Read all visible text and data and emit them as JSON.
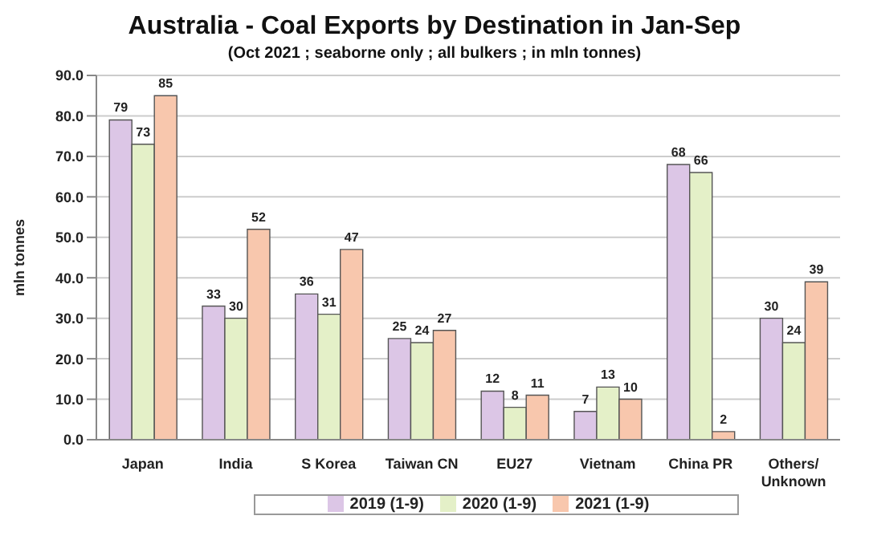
{
  "chart_data": {
    "type": "bar",
    "title": "Australia - Coal Exports by Destination in Jan-Sep",
    "subtitle": "(Oct 2021 ; seaborne only ; all bulkers ; in mln tonnes)",
    "ylabel": "mln tonnes",
    "categories": [
      "Japan",
      "India",
      "S Korea",
      "Taiwan CN",
      "EU27",
      "Vietnam",
      "China PR",
      "Others/Unknown"
    ],
    "series": [
      {
        "name": "2019 (1-9)",
        "color": "#dcc6e6",
        "values": [
          79,
          33,
          36,
          25,
          12,
          7,
          68,
          30
        ]
      },
      {
        "name": "2020 (1-9)",
        "color": "#e4f0c8",
        "values": [
          73,
          30,
          31,
          24,
          8,
          13,
          66,
          24
        ]
      },
      {
        "name": "2021 (1-9)",
        "color": "#f8c7ad",
        "values": [
          85,
          52,
          47,
          27,
          11,
          10,
          2,
          39
        ]
      }
    ],
    "ylim": [
      0,
      90
    ],
    "yticks": [
      {
        "value": 0,
        "label": "0.0"
      },
      {
        "value": 10,
        "label": "10.0"
      },
      {
        "value": 20,
        "label": "20.0"
      },
      {
        "value": 30,
        "label": "30.0"
      },
      {
        "value": 40,
        "label": "40.0"
      },
      {
        "value": 50,
        "label": "50.0"
      },
      {
        "value": 60,
        "label": "60.0"
      },
      {
        "value": 70,
        "label": "70.0"
      },
      {
        "value": 80,
        "label": "80.0"
      },
      {
        "value": 90,
        "label": "90.0"
      }
    ],
    "grid": "y",
    "legend": "bottom",
    "data_labels": true
  }
}
